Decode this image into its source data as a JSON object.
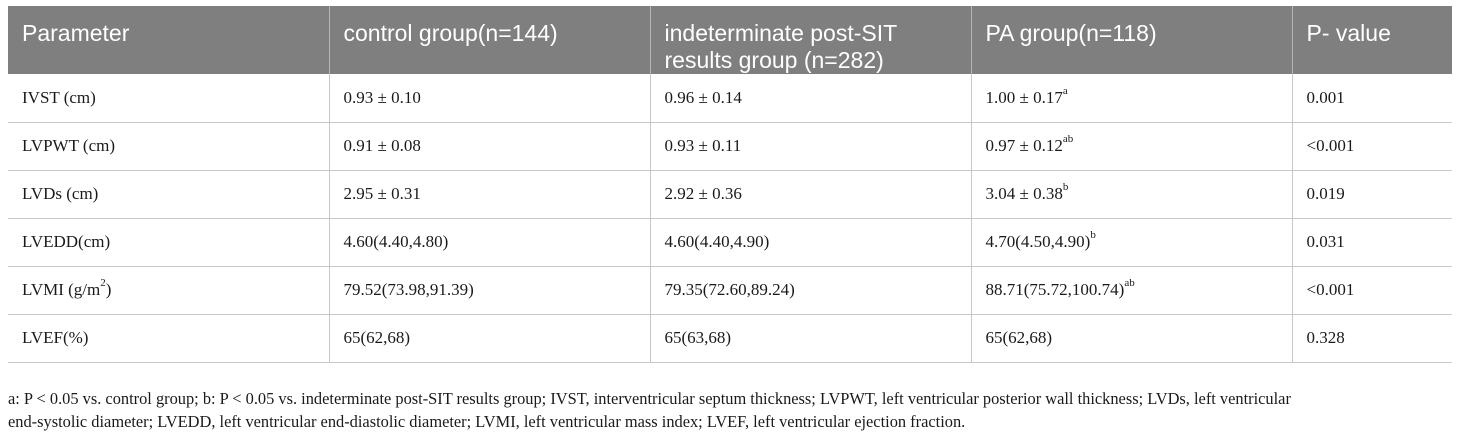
{
  "table": {
    "headers": [
      "Parameter",
      "control group(n=144)",
      "indeterminate post-SIT results group (n=282)",
      "PA group(n=118)",
      "P- value"
    ],
    "rows": [
      {
        "parameter": "IVST (cm)",
        "parameter_sup": "",
        "control": "0.93 ± 0.10",
        "indeterminate": "0.96 ± 0.14",
        "pa": "1.00 ± 0.17",
        "pa_sup": "a",
        "p_value": "0.001"
      },
      {
        "parameter": "LVPWT (cm)",
        "parameter_sup": "",
        "control": "0.91 ± 0.08",
        "indeterminate": "0.93 ± 0.11",
        "pa": "0.97 ± 0.12",
        "pa_sup": "ab",
        "p_value": "<0.001"
      },
      {
        "parameter": "LVDs (cm)",
        "parameter_sup": "",
        "control": "2.95 ± 0.31",
        "indeterminate": "2.92 ± 0.36",
        "pa": "3.04 ± 0.38",
        "pa_sup": "b",
        "p_value": "0.019"
      },
      {
        "parameter": "LVEDD(cm)",
        "parameter_sup": "",
        "control": "4.60(4.40,4.80)",
        "indeterminate": "4.60(4.40,4.90)",
        "pa": "4.70(4.50,4.90)",
        "pa_sup": "b",
        "p_value": "0.031"
      },
      {
        "parameter": "LVMI (g/m",
        "parameter_sup": "2",
        "parameter_suffix": ")",
        "control": "79.52(73.98,91.39)",
        "indeterminate": "79.35(72.60,89.24)",
        "pa": "88.71(75.72,100.74)",
        "pa_sup": "ab",
        "p_value": "<0.001"
      },
      {
        "parameter": "LVEF(%)",
        "parameter_sup": "",
        "control": "65(62,68)",
        "indeterminate": "65(63,68)",
        "pa": "65(62,68)",
        "pa_sup": "",
        "p_value": "0.328"
      }
    ]
  },
  "footnote": {
    "line1": "a: P < 0.05 vs. control group; b: P < 0.05 vs. indeterminate post-SIT results group; IVST, interventricular septum thickness; LVPWT, left ventricular posterior wall thickness; LVDs, left ventricular",
    "line2": "end-systolic diameter; LVEDD, left ventricular end-diastolic diameter; LVMI, left ventricular mass index; LVEF, left ventricular ejection fraction."
  }
}
